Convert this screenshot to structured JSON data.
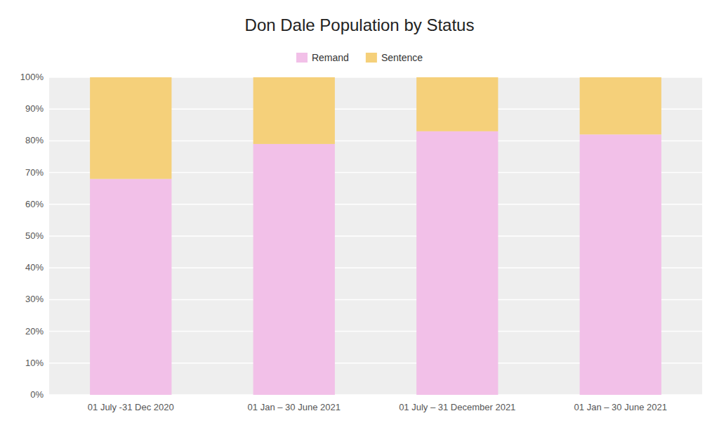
{
  "chart_data": {
    "type": "bar",
    "title": "Don Dale Population by Status",
    "categories": [
      "01 July -31 Dec 2020",
      "01 Jan – 30 June 2021",
      "01 July – 31 December 2021",
      "01 Jan – 30 June 2021"
    ],
    "series": [
      {
        "name": "Remand",
        "color": "#f2c0e8",
        "values": [
          68,
          79,
          83,
          82
        ]
      },
      {
        "name": "Sentence",
        "color": "#f5d07a",
        "values": [
          32,
          21,
          17,
          18
        ]
      }
    ],
    "stacked": true,
    "ylim": [
      0,
      100
    ],
    "yticks": [
      {
        "value": 0,
        "label": "0%"
      },
      {
        "value": 10,
        "label": "10%"
      },
      {
        "value": 20,
        "label": "20%"
      },
      {
        "value": 30,
        "label": "30%"
      },
      {
        "value": 40,
        "label": "40%"
      },
      {
        "value": 50,
        "label": "50%"
      },
      {
        "value": 60,
        "label": "60%"
      },
      {
        "value": 70,
        "label": "70%"
      },
      {
        "value": 80,
        "label": "80%"
      },
      {
        "value": 90,
        "label": "90%"
      },
      {
        "value": 100,
        "label": "100%"
      }
    ],
    "grid": true,
    "legend": "top"
  }
}
